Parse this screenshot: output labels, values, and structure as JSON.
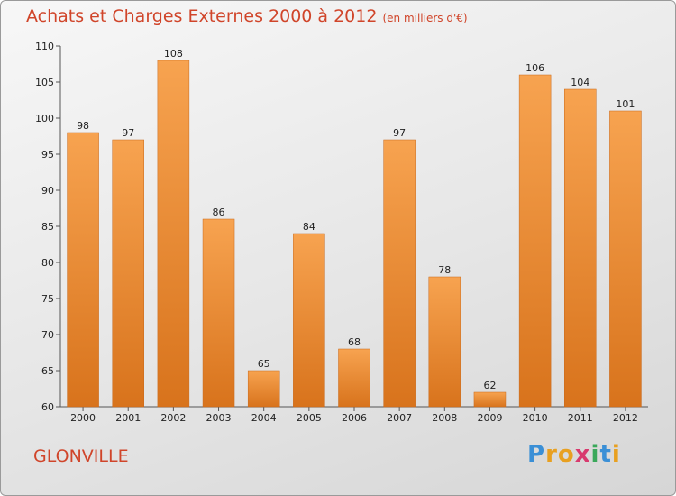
{
  "chart_data": {
    "type": "bar",
    "title": "Achats et Charges Externes 2000 à 2012",
    "subtitle": "(en milliers d'€)",
    "categories": [
      "2000",
      "2001",
      "2002",
      "2003",
      "2004",
      "2005",
      "2006",
      "2007",
      "2008",
      "2009",
      "2010",
      "2011",
      "2012"
    ],
    "values": [
      98,
      97,
      108,
      86,
      65,
      84,
      68,
      97,
      78,
      62,
      106,
      104,
      101
    ],
    "ylim": [
      60,
      110
    ],
    "yticks": [
      60,
      65,
      70,
      75,
      80,
      85,
      90,
      95,
      100,
      105,
      110
    ],
    "grid": false,
    "bar_color_top": "#f7a350",
    "bar_color_bottom": "#d8731c"
  },
  "commune": "GLONVILLE",
  "logo": {
    "letters": [
      "P",
      "r",
      "o",
      "x",
      "i",
      "t",
      "i"
    ],
    "colors": [
      "#3a8fd6",
      "#e8a020",
      "#e8a020",
      "#d83a6e",
      "#3aa85a",
      "#3a8fd6",
      "#e8a020"
    ]
  }
}
